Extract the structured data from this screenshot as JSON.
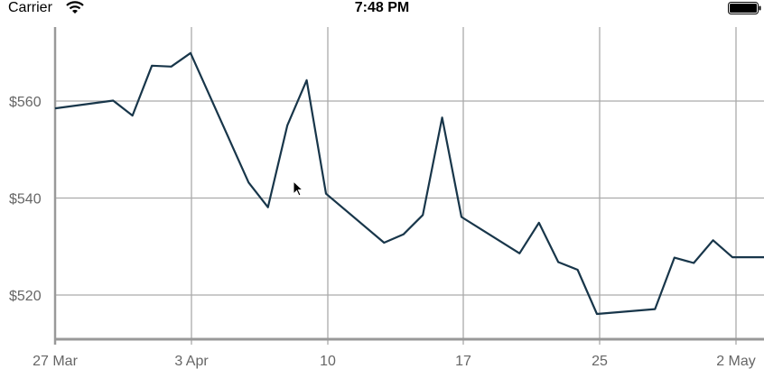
{
  "status_bar": {
    "carrier": "Carrier",
    "time": "7:48 PM",
    "wifi_icon": "wifi-icon",
    "battery_icon": "battery-icon"
  },
  "chart_data": {
    "type": "line",
    "title": "",
    "xlabel": "",
    "ylabel": "",
    "grid": true,
    "x_ticks": [
      "27 Mar",
      "3 Apr",
      "10",
      "17",
      "25",
      "2 May"
    ],
    "y_ticks": [
      "$520",
      "$540",
      "$560"
    ],
    "ylim": [
      510,
      576
    ],
    "line_color": "#18364a",
    "series": [
      {
        "x": [
          "2015-03-27",
          "2015-03-30",
          "2015-03-31",
          "2015-04-01",
          "2015-04-02",
          "2015-04-03",
          "2015-04-06",
          "2015-04-07",
          "2015-04-08",
          "2015-04-09",
          "2015-04-10",
          "2015-04-13",
          "2015-04-14",
          "2015-04-15",
          "2015-04-16",
          "2015-04-17",
          "2015-04-20",
          "2015-04-21",
          "2015-04-22",
          "2015-04-23",
          "2015-04-24",
          "2015-04-27",
          "2015-04-28",
          "2015-04-29",
          "2015-04-30",
          "2015-05-01",
          "2015-05-04"
        ],
        "values": [
          558.5,
          560.1,
          557.0,
          567.3,
          567.1,
          569.9,
          543.2,
          538.1,
          555.0,
          564.3,
          540.9,
          530.8,
          532.5,
          536.5,
          556.6,
          536.1,
          528.6,
          534.9,
          526.8,
          525.2,
          516.1,
          517.1,
          527.7,
          526.6,
          531.3,
          527.8,
          527.8
        ]
      }
    ]
  }
}
